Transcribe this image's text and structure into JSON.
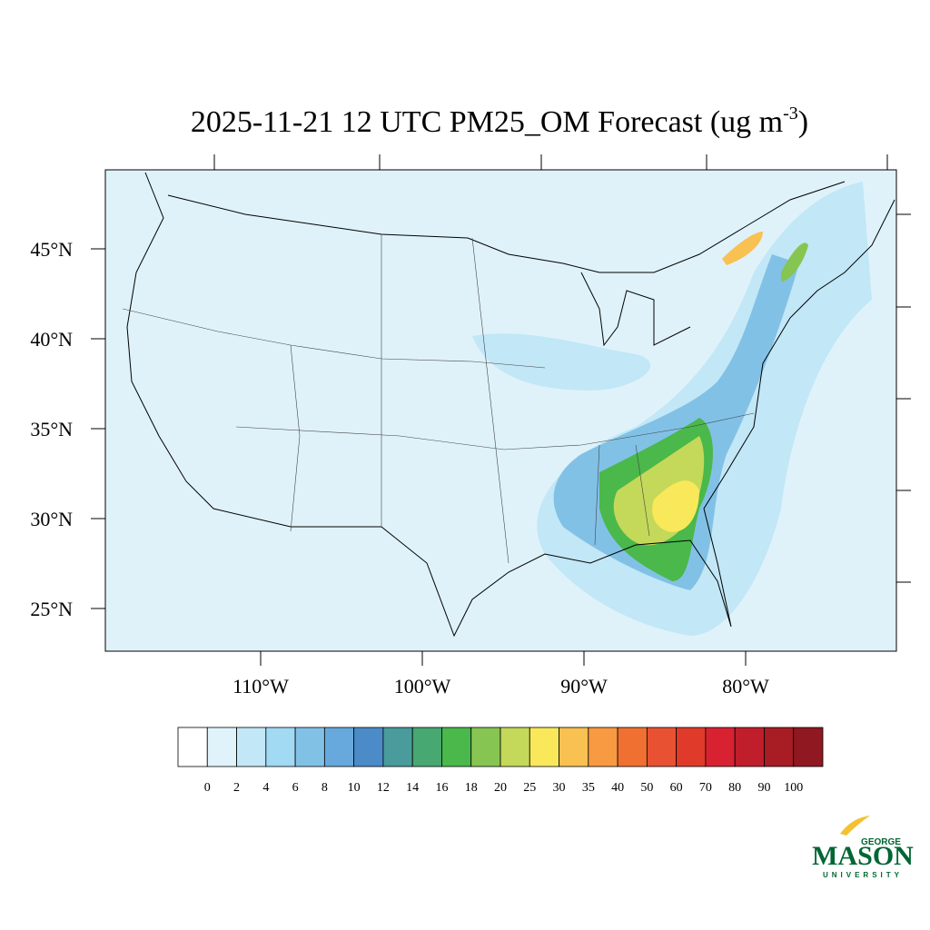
{
  "title": [
    "2025-11-21 12 UTC PM25_OM Forecast (ug m",
    "-3",
    ")"
  ],
  "lat_labels": [
    "45°N",
    "40°N",
    "35°N",
    "30°N",
    "25°N"
  ],
  "lon_labels": [
    "110°W",
    "100°W",
    "90°W",
    "80°W"
  ],
  "colorbar": {
    "levels": [
      0,
      2,
      4,
      6,
      8,
      10,
      12,
      14,
      16,
      18,
      20,
      25,
      30,
      35,
      40,
      50,
      60,
      70,
      80,
      90,
      100
    ],
    "colors": [
      "#ffffff",
      "#e0f3fb",
      "#c2e7f7",
      "#a2d9f3",
      "#82c1e6",
      "#67a9dc",
      "#4a8bc8",
      "#4a9b9b",
      "#48a872",
      "#4ab84a",
      "#86c552",
      "#c4d85a",
      "#f8e85a",
      "#f8c152",
      "#f89a42",
      "#f07032",
      "#e85232",
      "#e03a2a",
      "#d82232",
      "#c01e2a",
      "#a81c24",
      "#901820"
    ]
  },
  "logo": {
    "top": "GEORGE",
    "main": "MASON",
    "bottom": "UNIVERSITY"
  }
}
